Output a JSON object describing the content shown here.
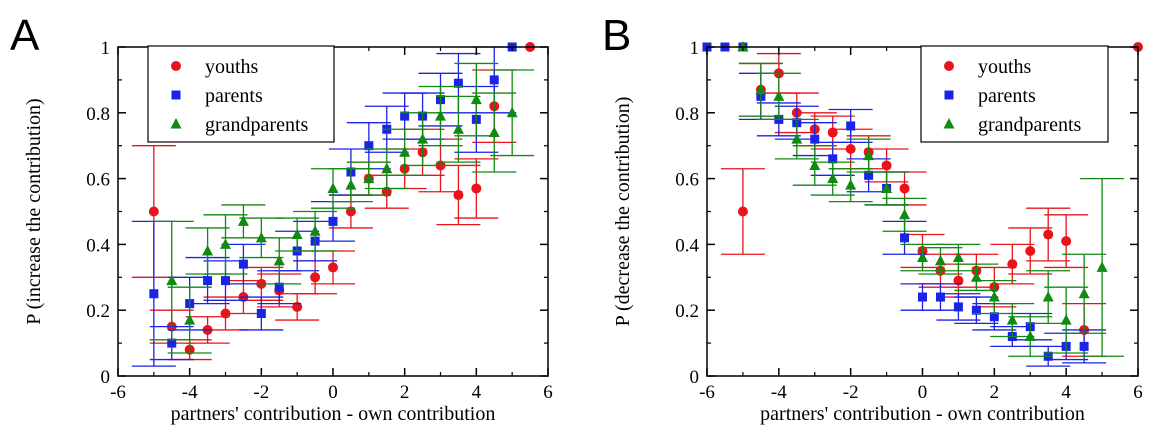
{
  "chart_data": [
    {
      "panel_label": "A",
      "type": "scatter",
      "xlabel": "partners' contribution - own contribution",
      "ylabel": "P (increase the contribution)",
      "xlim": [
        -6,
        6
      ],
      "ylim": [
        0,
        1
      ],
      "xticks": [
        -6,
        -4,
        -2,
        0,
        2,
        4,
        6
      ],
      "yticks": [
        0,
        0.2,
        0.4,
        0.6,
        0.8,
        1
      ],
      "ytick_labels": [
        "0",
        "0.2",
        "0.4",
        "0.6",
        "0.8",
        "1"
      ],
      "legend_position": "top-left",
      "series": [
        {
          "name": "youths",
          "color": "#e8141b",
          "marker": "circle",
          "x": [
            -5,
            -4.5,
            -4,
            -3.5,
            -3,
            -2.5,
            -2,
            -1.5,
            -1,
            -0.5,
            0,
            0.5,
            1,
            1.5,
            2,
            2.5,
            3,
            3.5,
            4,
            4.5,
            5.5
          ],
          "y": [
            0.5,
            0.15,
            0.08,
            0.14,
            0.19,
            0.24,
            0.28,
            0.26,
            0.21,
            0.3,
            0.33,
            0.5,
            0.6,
            0.56,
            0.63,
            0.68,
            0.64,
            0.55,
            0.57,
            0.82,
            1.0
          ],
          "yerr": [
            0.2,
            0.05,
            0.03,
            0.04,
            0.05,
            0.05,
            0.05,
            0.05,
            0.04,
            0.05,
            0.05,
            0.05,
            0.05,
            0.05,
            0.06,
            0.07,
            0.08,
            0.09,
            0.09,
            0.11,
            0
          ]
        },
        {
          "name": "parents",
          "color": "#1a23e6",
          "marker": "square",
          "x": [
            -5,
            -4.5,
            -4,
            -3.5,
            -3,
            -2.5,
            -2,
            -1.5,
            -1,
            -0.5,
            0,
            0.5,
            1,
            1.5,
            2,
            2.5,
            3,
            3.5,
            4,
            4.5,
            5
          ],
          "y": [
            0.25,
            0.1,
            0.22,
            0.29,
            0.29,
            0.34,
            0.19,
            0.27,
            0.38,
            0.41,
            0.47,
            0.62,
            0.7,
            0.75,
            0.79,
            0.79,
            0.84,
            0.89,
            0.78,
            0.9,
            1.0
          ],
          "yerr": [
            0.22,
            0.05,
            0.08,
            0.07,
            0.06,
            0.06,
            0.05,
            0.05,
            0.06,
            0.06,
            0.06,
            0.07,
            0.07,
            0.07,
            0.07,
            0.07,
            0.08,
            0.09,
            0.1,
            0.1,
            0
          ]
        },
        {
          "name": "grandparents",
          "color": "#108a10",
          "marker": "triangle",
          "x": [
            -4.5,
            -4,
            -3.5,
            -3,
            -2.5,
            -2,
            -1.5,
            -1,
            -0.5,
            0,
            0.5,
            1,
            1.5,
            2,
            2.5,
            3,
            3.5,
            4,
            4.5,
            5
          ],
          "y": [
            0.29,
            0.17,
            0.38,
            0.4,
            0.47,
            0.42,
            0.35,
            0.43,
            0.44,
            0.57,
            0.58,
            0.6,
            0.63,
            0.68,
            0.72,
            0.79,
            0.75,
            0.84,
            0.74,
            0.8
          ],
          "yerr": [
            0.18,
            0.1,
            0.07,
            0.09,
            0.05,
            0.06,
            0.07,
            0.05,
            0.06,
            0.06,
            0.05,
            0.05,
            0.06,
            0.07,
            0.08,
            0.09,
            0.1,
            0.11,
            0.12,
            0.13
          ]
        }
      ]
    },
    {
      "panel_label": "B",
      "type": "scatter",
      "xlabel": "partners' contribution - own contribution",
      "ylabel": "P (decrease the contribution)",
      "xlim": [
        -6,
        6
      ],
      "ylim": [
        0,
        1
      ],
      "xticks": [
        -6,
        -4,
        -2,
        0,
        2,
        4,
        6
      ],
      "yticks": [
        0,
        0.2,
        0.4,
        0.6,
        0.8,
        1
      ],
      "ytick_labels": [
        "0",
        "0.2",
        "0.4",
        "0.6",
        "0.8",
        "1"
      ],
      "legend_position": "top-right",
      "series": [
        {
          "name": "youths",
          "color": "#e8141b",
          "marker": "circle",
          "x": [
            -5,
            -4.5,
            -4,
            -3.5,
            -3,
            -2.5,
            -2,
            -1.5,
            -1,
            -0.5,
            0,
            0.5,
            1,
            1.5,
            2,
            2.5,
            3,
            3.5,
            4,
            4.5,
            6
          ],
          "y": [
            0.5,
            0.87,
            0.92,
            0.8,
            0.75,
            0.74,
            0.69,
            0.68,
            0.64,
            0.57,
            0.38,
            0.32,
            0.29,
            0.32,
            0.27,
            0.34,
            0.38,
            0.43,
            0.41,
            0.14,
            1.0
          ],
          "yerr": [
            0.13,
            0.08,
            0.06,
            0.06,
            0.05,
            0.05,
            0.06,
            0.05,
            0.05,
            0.05,
            0.05,
            0.05,
            0.05,
            0.05,
            0.06,
            0.06,
            0.07,
            0.08,
            0.08,
            0.08,
            0
          ]
        },
        {
          "name": "parents",
          "color": "#1a23e6",
          "marker": "square",
          "x": [
            -6,
            -5.5,
            -5,
            -4.5,
            -4,
            -3.5,
            -3,
            -2.5,
            -2,
            -1.5,
            -1,
            -0.5,
            0,
            0.5,
            1,
            1.5,
            2,
            2.5,
            3,
            3.5,
            4,
            4.5
          ],
          "y": [
            1.0,
            1.0,
            1.0,
            0.85,
            0.78,
            0.77,
            0.72,
            0.66,
            0.76,
            0.61,
            0.57,
            0.42,
            0.24,
            0.24,
            0.21,
            0.2,
            0.18,
            0.12,
            0.15,
            0.06,
            0.09,
            0.09
          ],
          "yerr": [
            0,
            0,
            0,
            0.07,
            0.05,
            0.05,
            0.05,
            0.05,
            0.05,
            0.05,
            0.05,
            0.05,
            0.04,
            0.04,
            0.04,
            0.04,
            0.04,
            0.03,
            0.04,
            0.03,
            0.04,
            0.05
          ]
        },
        {
          "name": "grandparents",
          "color": "#108a10",
          "marker": "triangle",
          "x": [
            -5,
            -4.5,
            -4,
            -3.5,
            -3,
            -2.5,
            -2,
            -1.5,
            -1,
            -0.5,
            0,
            0.5,
            1,
            1.5,
            2,
            2.5,
            3,
            3.5,
            4,
            4.5,
            5
          ],
          "y": [
            1.0,
            0.87,
            0.85,
            0.72,
            0.64,
            0.6,
            0.58,
            0.67,
            0.57,
            0.49,
            0.36,
            0.35,
            0.36,
            0.3,
            0.24,
            0.17,
            0.12,
            0.24,
            0.17,
            0.25,
            0.33
          ],
          "yerr": [
            0,
            0.08,
            0.07,
            0.06,
            0.06,
            0.05,
            0.05,
            0.05,
            0.05,
            0.05,
            0.04,
            0.04,
            0.04,
            0.04,
            0.05,
            0.05,
            0.06,
            0.08,
            0.1,
            0.12,
            0.27
          ]
        }
      ]
    }
  ]
}
